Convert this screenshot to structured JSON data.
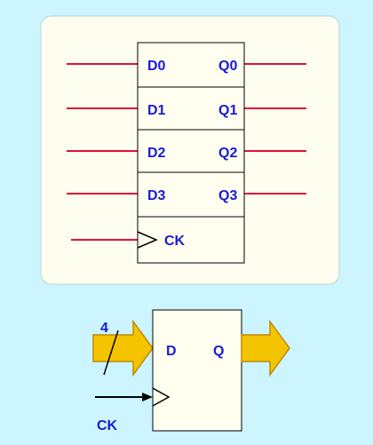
{
  "register_4bit": {
    "inputs": [
      "D0",
      "D1",
      "D2",
      "D3"
    ],
    "outputs": [
      "Q0",
      "Q1",
      "Q2",
      "Q3"
    ],
    "clock": "CK"
  },
  "register_bus": {
    "input": "D",
    "output": "Q",
    "bus_width": "4",
    "clock": "CK"
  },
  "colors": {
    "background": "#ccf5ff",
    "panel": "#fdfdf0",
    "block_fill": "#fffff0",
    "signal_line": "#e0103a",
    "bus_arrow": "#f5c400",
    "label": "#1a1ad6"
  }
}
